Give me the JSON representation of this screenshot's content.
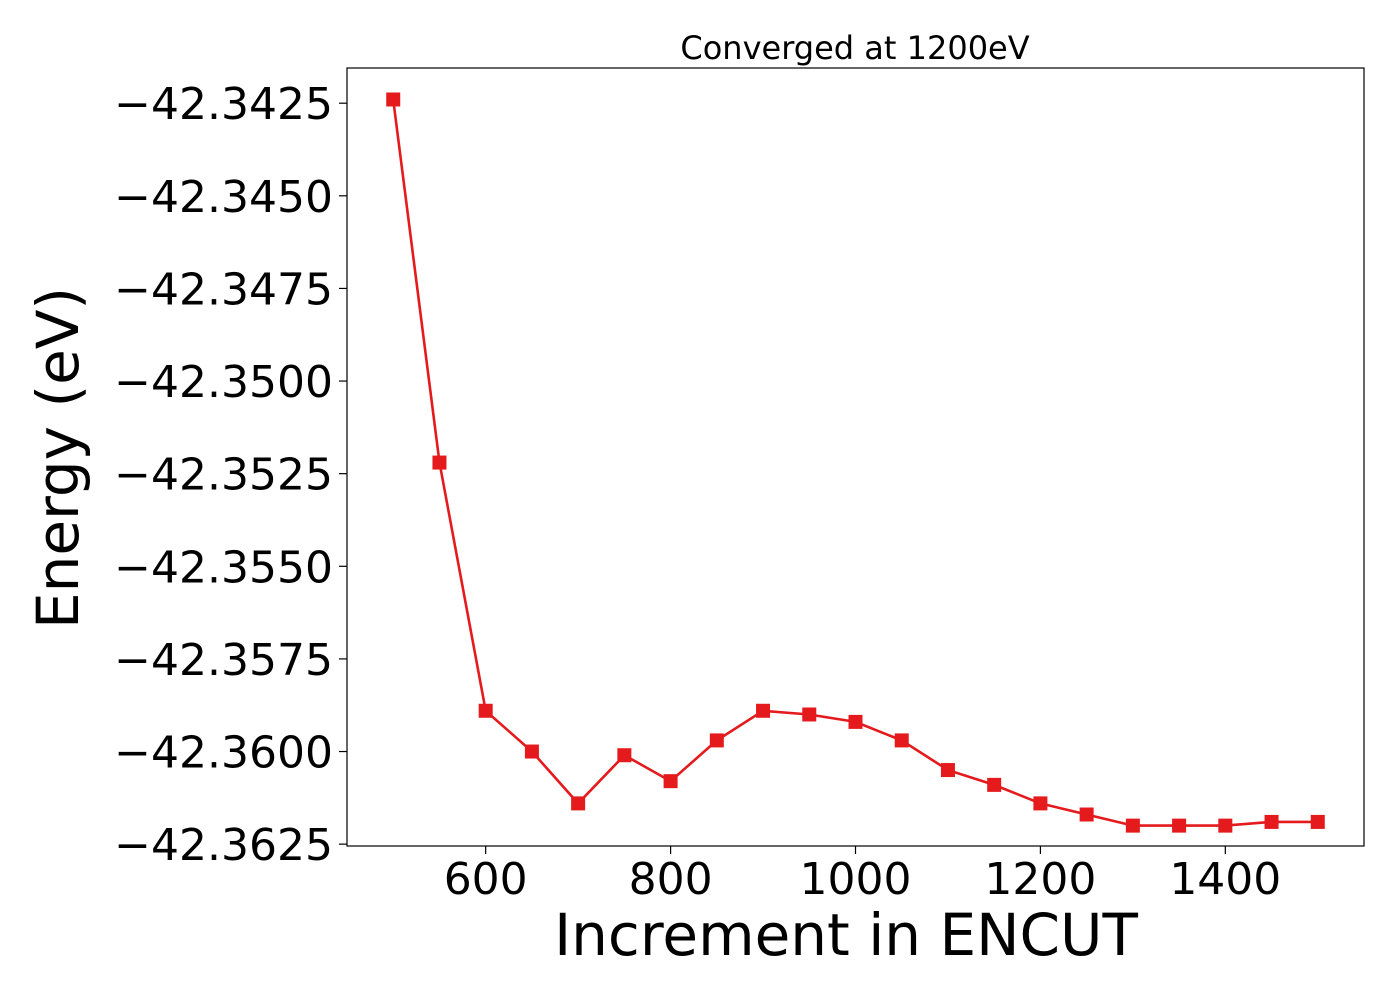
{
  "chart_data": {
    "type": "line",
    "title": "Converged at 1200eV",
    "xlabel": "Increment in ENCUT",
    "ylabel": "Energy (eV)",
    "xlim": [
      450,
      1550
    ],
    "ylim": [
      -42.36255,
      -42.34155
    ],
    "xticks": [
      600,
      800,
      1000,
      1200,
      1400
    ],
    "yticks": [
      -42.3425,
      -42.345,
      -42.3475,
      -42.35,
      -42.3525,
      -42.355,
      -42.3575,
      -42.36,
      -42.3625
    ],
    "ytick_labels": [
      "−42.3425",
      "−42.3450",
      "−42.3475",
      "−42.3500",
      "−42.3525",
      "−42.3550",
      "−42.3575",
      "−42.3600",
      "−42.3625"
    ],
    "xtick_labels": [
      "600",
      "800",
      "1000",
      "1200",
      "1400"
    ],
    "grid": false,
    "color": "#e41a1c",
    "marker": "square",
    "series": [
      {
        "x": [
          500,
          550,
          600,
          650,
          700,
          750,
          800,
          850,
          900,
          950,
          1000,
          1050,
          1100,
          1150,
          1200,
          1250,
          1300,
          1350,
          1400,
          1450,
          1500
        ],
        "values": [
          -42.3424,
          -42.3522,
          -42.3589,
          -42.36,
          -42.3614,
          -42.3601,
          -42.3608,
          -42.3597,
          -42.3589,
          -42.359,
          -42.3592,
          -42.3597,
          -42.3605,
          -42.3609,
          -42.3614,
          -42.3617,
          -42.362,
          -42.362,
          -42.362,
          -42.3619,
          -42.3619
        ]
      }
    ]
  }
}
